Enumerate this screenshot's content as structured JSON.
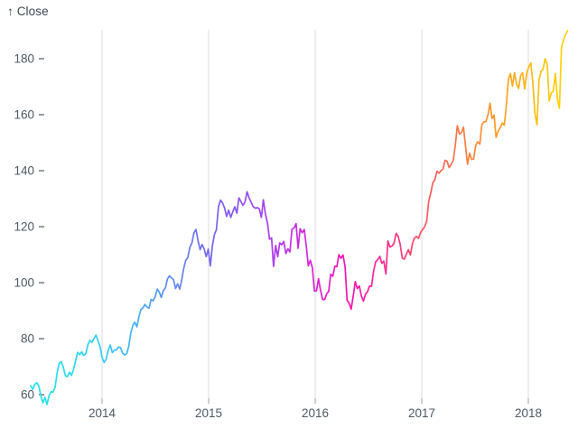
{
  "page": {
    "background": "#ffffff",
    "text_color": "#3d4650",
    "tick_label_color": "#4f5962",
    "gridline_color": "#dcdcdc",
    "tick_mark_color": "#9aa1a9"
  },
  "chart_data": {
    "type": "line",
    "title": "",
    "ylabel": "↑ Close",
    "xlabel": "",
    "legend": "none",
    "grid": "x-only",
    "x_tick_labels": [
      "2014",
      "2015",
      "2016",
      "2017",
      "2018"
    ],
    "x_ticks": [
      2014,
      2015,
      2016,
      2017,
      2018
    ],
    "y_tick_labels": [
      "60",
      "80",
      "100",
      "120",
      "140",
      "160",
      "180"
    ],
    "y_ticks": [
      60,
      80,
      100,
      120,
      140,
      160,
      180
    ],
    "x_domain": [
      2013.33,
      2018.37
    ],
    "ylim": [
      52,
      192
    ],
    "line_width": 1.7,
    "gradient_stops": [
      {
        "offset": 0.0,
        "color": "#26E2E6"
      },
      {
        "offset": 0.07,
        "color": "#2BDAEC"
      },
      {
        "offset": 0.13,
        "color": "#36CDF0"
      },
      {
        "offset": 0.2,
        "color": "#4AAEF3"
      },
      {
        "offset": 0.26,
        "color": "#5F8DF0"
      },
      {
        "offset": 0.33,
        "color": "#7567EE"
      },
      {
        "offset": 0.4,
        "color": "#9150F0"
      },
      {
        "offset": 0.46,
        "color": "#B23AEC"
      },
      {
        "offset": 0.53,
        "color": "#DA22D2"
      },
      {
        "offset": 0.59,
        "color": "#F414B2"
      },
      {
        "offset": 0.65,
        "color": "#FD2996"
      },
      {
        "offset": 0.7,
        "color": "#FC4176"
      },
      {
        "offset": 0.73,
        "color": "#F95562"
      },
      {
        "offset": 0.79,
        "color": "#F9744A"
      },
      {
        "offset": 0.85,
        "color": "#FB9330"
      },
      {
        "offset": 0.91,
        "color": "#FCB01B"
      },
      {
        "offset": 0.96,
        "color": "#FEC60E"
      },
      {
        "offset": 1.0,
        "color": "#FFD60A"
      }
    ],
    "series": [
      {
        "name": "Close",
        "x_start_year": 2013.33,
        "x_step_years": 0.0191571,
        "values": [
          63.2,
          61.9,
          63.6,
          64.3,
          63.0,
          59.6,
          57.1,
          59.0,
          56.5,
          59.6,
          61.0,
          60.9,
          62.8,
          67.9,
          71.2,
          71.8,
          69.8,
          66.8,
          66.4,
          68.0,
          66.9,
          69.0,
          72.1,
          75.1,
          74.3,
          75.3,
          74.0,
          74.6,
          77.7,
          79.4,
          78.7,
          80.0,
          81.3,
          79.2,
          77.2,
          73.2,
          71.5,
          72.7,
          75.8,
          77.7,
          75.0,
          75.9,
          76.0,
          77.0,
          76.8,
          74.9,
          74.2,
          74.6,
          77.0,
          81.7,
          84.7,
          85.9,
          84.2,
          87.7,
          90.4,
          91.0,
          92.2,
          91.3,
          90.9,
          94.0,
          93.5,
          95.0,
          97.7,
          96.6,
          94.7,
          97.2,
          98.1,
          101.3,
          102.5,
          101.7,
          101.0,
          97.9,
          99.6,
          97.7,
          101.0,
          105.2,
          108.0,
          109.0,
          112.7,
          114.2,
          117.8,
          119.0,
          115.0,
          111.8,
          113.6,
          112.0,
          109.3,
          112.0,
          106.0,
          113.0,
          117.2,
          118.9,
          127.1,
          129.5,
          128.5,
          126.6,
          123.6,
          125.9,
          123.3,
          125.3,
          127.1,
          124.8,
          130.3,
          129.0,
          127.6,
          128.8,
          132.5,
          130.3,
          128.7,
          127.2,
          126.6,
          126.8,
          126.4,
          123.3,
          129.6,
          124.5,
          121.3,
          115.5,
          116.0,
          105.8,
          113.3,
          109.3,
          114.2,
          113.5,
          114.7,
          110.4,
          112.1,
          111.0,
          119.1,
          119.5,
          121.1,
          112.3,
          119.3,
          117.8,
          119.0,
          113.2,
          106.0,
          108.0,
          105.3,
          97.0,
          97.1,
          101.4,
          97.3,
          94.0,
          94.0,
          96.0,
          96.9,
          103.0,
          102.3,
          105.9,
          105.7,
          110.0,
          108.7,
          109.9,
          105.7,
          93.7,
          92.7,
          90.5,
          95.2,
          100.4,
          97.9,
          98.8,
          95.3,
          93.4,
          95.9,
          96.7,
          98.8,
          98.7,
          104.2,
          107.5,
          108.2,
          109.4,
          106.9,
          107.7,
          103.1,
          114.9,
          112.7,
          113.1,
          114.1,
          117.6,
          116.6,
          113.7,
          108.8,
          108.4,
          110.1,
          111.8,
          109.9,
          114.0,
          116.0,
          116.5,
          115.8,
          117.9,
          119.0,
          120.0,
          122.0,
          129.1,
          132.1,
          135.7,
          136.7,
          139.8,
          139.1,
          140.0,
          140.6,
          143.7,
          143.3,
          141.1,
          142.3,
          143.7,
          149.0,
          156.1,
          153.1,
          153.6,
          155.5,
          149.0,
          142.3,
          146.3,
          144.0,
          144.2,
          149.0,
          150.3,
          149.5,
          156.4,
          157.5,
          157.5,
          159.9,
          164.1,
          158.6,
          159.9,
          151.9,
          154.1,
          155.3,
          157.0,
          156.3,
          163.1,
          172.5,
          174.7,
          170.2,
          175.0,
          171.1,
          169.4,
          174.0,
          175.0,
          169.2,
          175.0,
          177.1,
          178.5,
          171.5,
          160.5,
          156.4,
          172.4,
          175.5,
          176.2,
          180.0,
          178.0,
          164.9,
          167.8,
          168.4,
          174.7,
          165.7,
          162.3,
          183.8,
          186.6,
          188.6,
          190.0
        ]
      }
    ]
  }
}
